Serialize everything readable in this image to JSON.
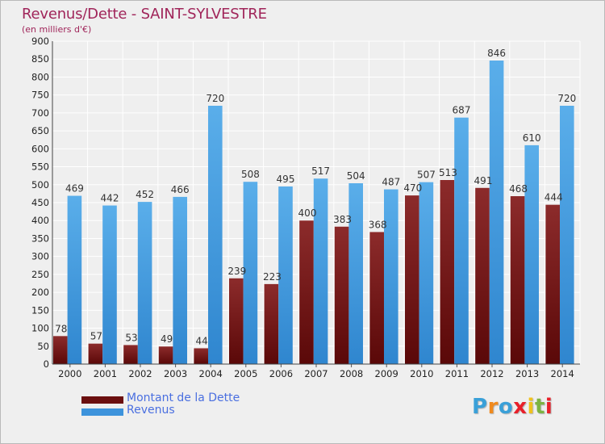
{
  "header": {
    "title": "Revenus/Dette - SAINT-SYLVESTRE",
    "subtitle": "(en milliers d'€)"
  },
  "chart_data": {
    "type": "bar",
    "categories": [
      "2000",
      "2001",
      "2002",
      "2003",
      "2004",
      "2005",
      "2006",
      "2007",
      "2008",
      "2009",
      "2010",
      "2011",
      "2012",
      "2013",
      "2014"
    ],
    "series": [
      {
        "name": "Montant de la Dette",
        "color": "#7b1a1a",
        "values": [
          78,
          57,
          53,
          49,
          44,
          239,
          223,
          400,
          383,
          368,
          470,
          513,
          491,
          468,
          444
        ]
      },
      {
        "name": "Revenus",
        "color": "#4aa1e2",
        "values": [
          469,
          442,
          452,
          466,
          720,
          508,
          495,
          517,
          504,
          487,
          507,
          687,
          846,
          610,
          720
        ]
      }
    ],
    "ylim": [
      0,
      900
    ],
    "yticks": [
      0,
      50,
      100,
      150,
      200,
      250,
      300,
      350,
      400,
      450,
      500,
      550,
      600,
      650,
      700,
      750,
      800,
      850,
      900
    ],
    "xlabel": "",
    "ylabel": "",
    "grid": true,
    "legend_position": "bottom-left"
  },
  "legend": {
    "items": [
      {
        "label": "Montant de la Dette",
        "color": "#6b0f0f"
      },
      {
        "label": "Revenus",
        "color": "#3d93dc"
      }
    ]
  },
  "logo": {
    "letters": [
      "P",
      "r",
      "o",
      "x",
      "i",
      "t",
      "i"
    ],
    "colors": [
      "#3aa0d8",
      "#f08a1e",
      "#3aa0d8",
      "#e8202a",
      "#f0c21e",
      "#7cb342",
      "#e8202a"
    ]
  }
}
